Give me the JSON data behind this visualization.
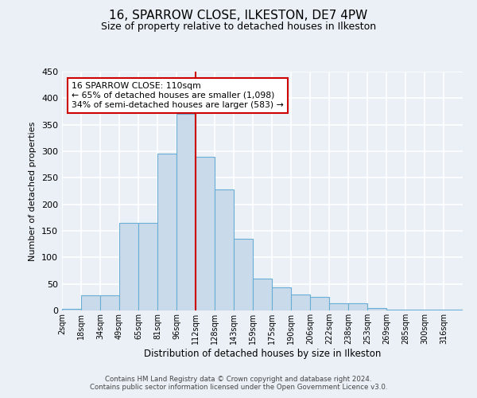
{
  "title": "16, SPARROW CLOSE, ILKESTON, DE7 4PW",
  "subtitle": "Size of property relative to detached houses in Ilkeston",
  "bar_labels": [
    "2sqm",
    "18sqm",
    "34sqm",
    "49sqm",
    "65sqm",
    "81sqm",
    "96sqm",
    "112sqm",
    "128sqm",
    "143sqm",
    "159sqm",
    "175sqm",
    "190sqm",
    "206sqm",
    "222sqm",
    "238sqm",
    "253sqm",
    "269sqm",
    "285sqm",
    "300sqm",
    "316sqm"
  ],
  "bar_values": [
    3,
    29,
    29,
    165,
    165,
    295,
    370,
    290,
    228,
    135,
    60,
    43,
    30,
    25,
    13,
    14,
    5,
    2,
    2,
    1,
    1
  ],
  "bar_color": "#c9daea",
  "bar_edge_color": "#6aaed6",
  "vline_color": "#cc0000",
  "annotation_text": "16 SPARROW CLOSE: 110sqm\n← 65% of detached houses are smaller (1,098)\n34% of semi-detached houses are larger (583) →",
  "annotation_box_edge": "#cc0000",
  "ylabel": "Number of detached properties",
  "xlabel": "Distribution of detached houses by size in Ilkeston",
  "ylim": [
    0,
    450
  ],
  "yticks": [
    0,
    50,
    100,
    150,
    200,
    250,
    300,
    350,
    400,
    450
  ],
  "footer_line1": "Contains HM Land Registry data © Crown copyright and database right 2024.",
  "footer_line2": "Contains public sector information licensed under the Open Government Licence v3.0.",
  "bg_color": "#eaf0f6",
  "grid_color": "#ffffff",
  "title_fontsize": 11,
  "subtitle_fontsize": 9
}
